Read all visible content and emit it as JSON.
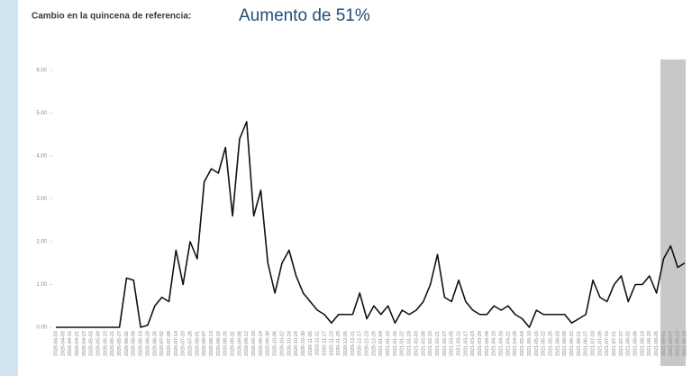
{
  "header": {
    "label": "Cambio en la quincena de referencia:",
    "headline": "Aumento de 51%"
  },
  "chart_data": {
    "type": "line",
    "x": [
      "2020-04-03",
      "2020-04-09",
      "2020-04-15",
      "2020-04-21",
      "2020-04-27",
      "2020-05-03",
      "2020-05-09",
      "2020-05-15",
      "2020-05-21",
      "2020-05-27",
      "2020-06-02",
      "2020-06-08",
      "2020-06-14",
      "2020-06-20",
      "2020-06-26",
      "2020-07-02",
      "2020-07-08",
      "2020-07-14",
      "2020-07-20",
      "2020-07-26",
      "2020-08-01",
      "2020-08-07",
      "2020-08-13",
      "2020-08-19",
      "2020-08-25",
      "2020-08-31",
      "2020-09-06",
      "2020-09-12",
      "2020-09-18",
      "2020-09-24",
      "2020-09-30",
      "2020-10-06",
      "2020-10-12",
      "2020-10-18",
      "2020-10-24",
      "2020-10-30",
      "2020-11-05",
      "2020-11-11",
      "2020-11-17",
      "2020-11-23",
      "2020-11-29",
      "2020-12-05",
      "2020-12-11",
      "2020-12-17",
      "2020-12-23",
      "2020-12-29",
      "2021-01-04",
      "2021-01-10",
      "2021-01-16",
      "2021-01-22",
      "2021-01-28",
      "2021-02-03",
      "2021-02-09",
      "2021-02-15",
      "2021-02-21",
      "2021-02-27",
      "2021-03-05",
      "2021-03-11",
      "2021-03-17",
      "2021-03-23",
      "2021-03-29",
      "2021-04-04",
      "2021-04-10",
      "2021-04-16",
      "2021-04-22",
      "2021-04-28",
      "2021-05-04",
      "2021-05-10",
      "2021-05-16",
      "2021-05-22",
      "2021-05-28",
      "2021-06-03",
      "2021-06-09",
      "2021-06-15",
      "2021-06-21",
      "2021-06-27",
      "2021-07-03",
      "2021-07-09",
      "2021-07-15",
      "2021-07-21",
      "2021-07-27",
      "2021-08-02",
      "2021-08-08",
      "2021-08-14",
      "2021-08-20",
      "2021-08-26",
      "2021-09-01",
      "2021-09-07",
      "2021-09-13",
      "2021-09-19"
    ],
    "series": [
      {
        "color": "#111111",
        "values": [
          0,
          0,
          0,
          0,
          0,
          0,
          0,
          0,
          0,
          0,
          1.15,
          1.1,
          0,
          0.05,
          0.5,
          0.7,
          0.6,
          1.8,
          1.0,
          2.0,
          1.6,
          3.4,
          3.7,
          3.6,
          4.2,
          2.6,
          4.4,
          4.8,
          2.6,
          3.2,
          1.5,
          0.8,
          1.5,
          1.8,
          1.2,
          0.8,
          0.6,
          0.4,
          0.3,
          0.1,
          0.3,
          0.3,
          0.3,
          0.8,
          0.2,
          0.5,
          0.3,
          0.5,
          0.1,
          0.4,
          0.3,
          0.4,
          0.6,
          1.0,
          1.7,
          0.7,
          0.6,
          1.1,
          0.6,
          0.4,
          0.3,
          0.3,
          0.5,
          0.4,
          0.5,
          0.3,
          0.2,
          0,
          0.4,
          0.3,
          0.3,
          0.3,
          0.3,
          0.1,
          0.2,
          0.3,
          1.1,
          0.7,
          0.6,
          1.0,
          1.2,
          0.6,
          1.0,
          1.0,
          1.2,
          0.8,
          1.6,
          1.9,
          1.4,
          1.5
        ]
      }
    ],
    "ylim": [
      0,
      6
    ],
    "yticks": [
      {
        "value": 0,
        "label": "0.00"
      },
      {
        "value": 1,
        "label": "1.00"
      },
      {
        "value": 2,
        "label": "2.00"
      },
      {
        "value": 3,
        "label": "3.00"
      },
      {
        "value": 4,
        "label": "4.00"
      },
      {
        "value": 5,
        "label": "5.00"
      },
      {
        "value": 6,
        "label": "6.00"
      }
    ]
  }
}
